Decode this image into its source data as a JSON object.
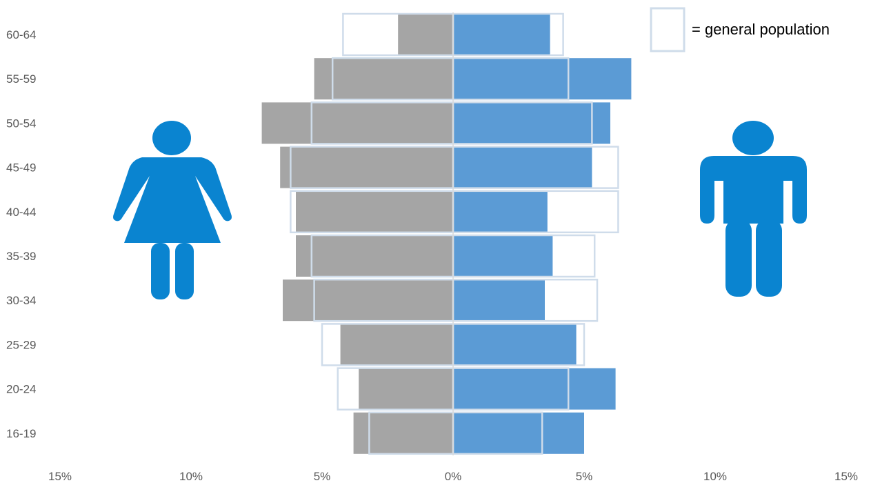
{
  "chart_data": {
    "type": "bar",
    "orientation": "horizontal-population-pyramid",
    "categories": [
      "16-19",
      "20-24",
      "25-29",
      "30-34",
      "35-39",
      "40-44",
      "45-49",
      "50-54",
      "55-59",
      "60-64"
    ],
    "series": [
      {
        "side": "female",
        "values": [
          3.8,
          3.6,
          4.3,
          6.5,
          6.0,
          6.0,
          6.6,
          7.3,
          5.3,
          2.1
        ]
      },
      {
        "side": "male",
        "values": [
          5.0,
          6.2,
          4.7,
          3.5,
          3.8,
          3.6,
          5.3,
          6.0,
          6.8,
          3.7
        ]
      },
      {
        "name": "general population",
        "side": "female",
        "values": [
          3.2,
          4.4,
          5.0,
          5.3,
          5.4,
          6.2,
          6.2,
          5.4,
          4.6,
          4.2
        ]
      },
      {
        "name": "general population",
        "side": "male",
        "values": [
          3.4,
          4.4,
          5.0,
          5.5,
          5.4,
          6.3,
          6.3,
          5.3,
          4.4,
          4.2
        ]
      }
    ],
    "x_ticks": [
      "15%",
      "10%",
      "5%",
      "0%",
      "5%",
      "10%",
      "15%"
    ],
    "x_tick_values": [
      -15,
      -10,
      -5,
      0,
      5,
      10,
      15
    ],
    "xlim": [
      -15,
      15
    ],
    "legend": {
      "text": "= general population",
      "position": "top-right"
    },
    "grid": false,
    "colors": {
      "female": "#a5a5a5",
      "male": "#5b9bd5",
      "outline": "#cfdcea",
      "icon": "#0a84d0"
    }
  },
  "icons": {
    "female": "female-person-icon",
    "male": "male-person-icon"
  }
}
